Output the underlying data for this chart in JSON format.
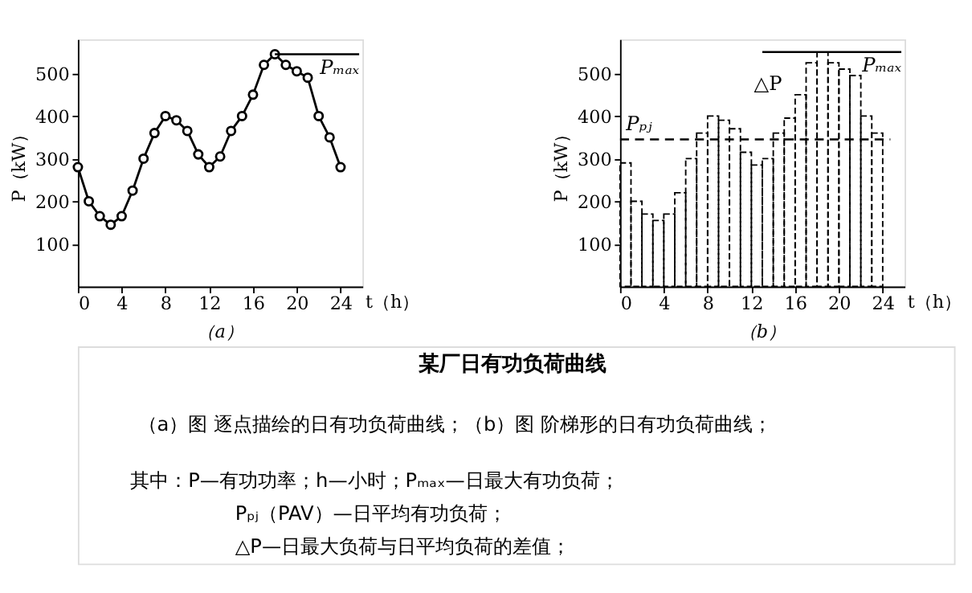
{
  "chart_data": [
    {
      "type": "line",
      "title": "（a）",
      "xlabel": "t（h）",
      "ylabel": "P（kW）",
      "x": [
        0,
        1,
        2,
        3,
        4,
        5,
        6,
        7,
        8,
        9,
        10,
        11,
        12,
        13,
        14,
        15,
        16,
        17,
        18,
        19,
        20,
        21,
        22,
        23,
        24
      ],
      "series": [
        {
          "color": "#000000",
          "values": [
            280,
            200,
            165,
            145,
            165,
            225,
            300,
            360,
            400,
            390,
            365,
            310,
            280,
            305,
            365,
            400,
            450,
            520,
            545,
            520,
            505,
            490,
            400,
            350,
            280
          ]
        }
      ],
      "marker": "circle",
      "xlim": [
        0,
        26
      ],
      "ylim": [
        0,
        580
      ],
      "xticks": [
        0,
        4,
        8,
        12,
        16,
        20,
        24
      ],
      "yticks": [
        100,
        200,
        300,
        400,
        500
      ],
      "grid": false,
      "ref_lines": [
        {
          "axis": "y",
          "value": 545,
          "label": "Pₘₐₓ",
          "line_style": "solid"
        }
      ]
    },
    {
      "type": "histogram",
      "title": "（b）",
      "xlabel": "t（h）",
      "ylabel": "P（kW）",
      "bins": [
        0,
        1,
        2,
        3,
        4,
        5,
        6,
        7,
        8,
        9,
        10,
        11,
        12,
        13,
        14,
        15,
        16,
        17,
        18,
        19,
        20,
        21,
        22,
        23,
        24
      ],
      "values": [
        290,
        200,
        170,
        155,
        170,
        220,
        300,
        360,
        400,
        390,
        370,
        315,
        285,
        300,
        360,
        395,
        450,
        525,
        550,
        525,
        510,
        495,
        400,
        360
      ],
      "color": "#000000",
      "xlim": [
        0,
        26
      ],
      "ylim": [
        0,
        580
      ],
      "xticks": [
        0,
        4,
        8,
        12,
        16,
        20,
        24
      ],
      "yticks": [
        100,
        200,
        300,
        400,
        500
      ],
      "grid": false,
      "ref_lines": [
        {
          "axis": "y",
          "value": 550,
          "label": "Pₘₐₓ",
          "line_style": "solid"
        },
        {
          "axis": "y",
          "value": 345,
          "label": "Pₚⱼ",
          "line_style": "dashed"
        }
      ],
      "annotations": [
        "△P"
      ]
    },
    {
      "type": "other",
      "title": "某厂日有功负荷曲线",
      "annotations": [
        "（a）图 逐点描绘的日有功负荷曲线；（b）图 阶梯形的日有功负荷曲线；",
        "其中：P—有功功率；h—小时；Pₘₐₓ—日最大有功负荷；",
        "Pₚⱼ（PAV）—日平均有功负荷；",
        "△P—日最大负荷与日平均负荷的差值；"
      ]
    }
  ]
}
